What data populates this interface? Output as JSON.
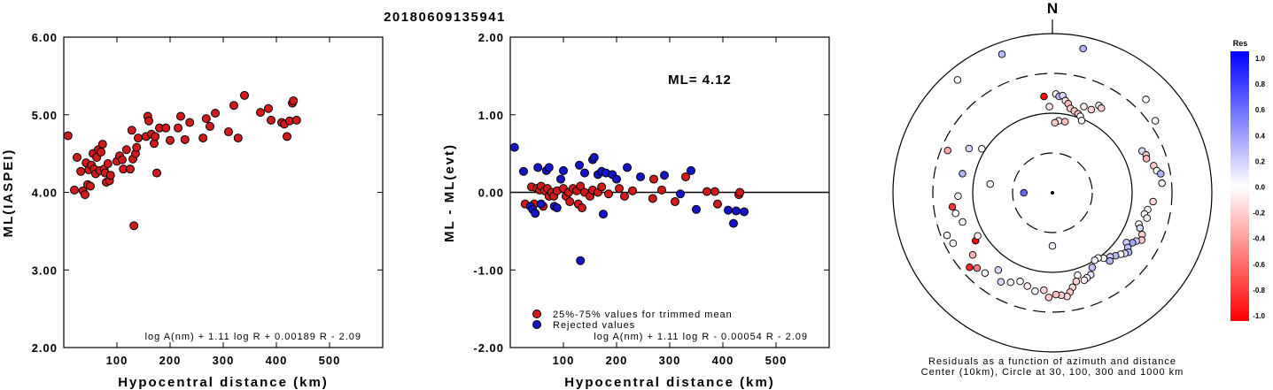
{
  "event_id": "20180609135941",
  "colors": {
    "accepted": "#d11a1a",
    "rejected": "#1414c8"
  },
  "chart_data": [
    {
      "type": "scatter",
      "id": "left",
      "xlabel": "Hypocentral distance (km)",
      "ylabel": "ML(IASPEI)",
      "xlim": [
        0,
        600
      ],
      "ylim": [
        2.0,
        6.0
      ],
      "x_ticks": [
        "100",
        "200",
        "300",
        "400",
        "500"
      ],
      "y_ticks": [
        "2.00",
        "3.00",
        "4.00",
        "5.00",
        "6.00"
      ],
      "formula": "log A(nm) + 1.11 log R + 0.00189 R - 2.09",
      "series": [
        {
          "points": [
            [
              8,
              4.73
            ],
            [
              20,
              4.03
            ],
            [
              25,
              4.45
            ],
            [
              32,
              4.27
            ],
            [
              36,
              4.02
            ],
            [
              40,
              3.97
            ],
            [
              42,
              4.38
            ],
            [
              45,
              4.1
            ],
            [
              47,
              4.29
            ],
            [
              50,
              4.08
            ],
            [
              52,
              4.35
            ],
            [
              55,
              4.5
            ],
            [
              57,
              4.3
            ],
            [
              60,
              4.24
            ],
            [
              62,
              4.45
            ],
            [
              65,
              4.55
            ],
            [
              68,
              4.28
            ],
            [
              70,
              4.52
            ],
            [
              73,
              4.62
            ],
            [
              76,
              4.3
            ],
            [
              78,
              4.25
            ],
            [
              80,
              4.13
            ],
            [
              83,
              4.37
            ],
            [
              86,
              4.15
            ],
            [
              88,
              4.22
            ],
            [
              100,
              4.4
            ],
            [
              105,
              4.47
            ],
            [
              110,
              4.42
            ],
            [
              112,
              4.3
            ],
            [
              118,
              4.55
            ],
            [
              125,
              4.3
            ],
            [
              128,
              4.8
            ],
            [
              130,
              4.43
            ],
            [
              132,
              3.57
            ],
            [
              135,
              4.5
            ],
            [
              137,
              4.58
            ],
            [
              140,
              4.7
            ],
            [
              155,
              4.72
            ],
            [
              158,
              4.98
            ],
            [
              160,
              4.92
            ],
            [
              165,
              4.75
            ],
            [
              170,
              4.63
            ],
            [
              172,
              4.72
            ],
            [
              175,
              4.25
            ],
            [
              180,
              4.83
            ],
            [
              192,
              4.83
            ],
            [
              200,
              4.67
            ],
            [
              215,
              4.83
            ],
            [
              220,
              4.98
            ],
            [
              228,
              4.68
            ],
            [
              237,
              4.9
            ],
            [
              262,
              4.7
            ],
            [
              268,
              4.95
            ],
            [
              275,
              4.85
            ],
            [
              285,
              5.02
            ],
            [
              310,
              4.78
            ],
            [
              320,
              5.12
            ],
            [
              328,
              4.7
            ],
            [
              340,
              5.25
            ],
            [
              370,
              5.03
            ],
            [
              385,
              5.08
            ],
            [
              390,
              4.93
            ],
            [
              410,
              4.9
            ],
            [
              415,
              4.88
            ],
            [
              420,
              4.72
            ],
            [
              425,
              4.92
            ],
            [
              430,
              5.15
            ],
            [
              432,
              5.18
            ],
            [
              438,
              4.93
            ]
          ]
        }
      ]
    },
    {
      "type": "scatter",
      "id": "middle",
      "xlabel": "Hypocentral distance (km)",
      "ylabel": "ML - ML(evt)",
      "xlim": [
        0,
        600
      ],
      "ylim": [
        -2.0,
        2.0
      ],
      "x_ticks": [
        "100",
        "200",
        "300",
        "400",
        "500"
      ],
      "y_ticks": [
        "-2.00",
        "-1.00",
        "0.00",
        "1.00",
        "2.00"
      ],
      "annotation": "ML= 4.12",
      "legend": [
        "25%-75% values for trimmed mean",
        "Rejected values"
      ],
      "formula": "log A(nm) + 1.11 log R - 0.00054 R - 2.09",
      "series": [
        {
          "name": "25%-75% values for trimmed mean",
          "points": [
            [
              28,
              -0.15
            ],
            [
              40,
              0.07
            ],
            [
              45,
              -0.15
            ],
            [
              50,
              0.05
            ],
            [
              55,
              0.03
            ],
            [
              58,
              0.08
            ],
            [
              62,
              -0.18
            ],
            [
              65,
              0.02
            ],
            [
              70,
              0.05
            ],
            [
              73,
              -0.05
            ],
            [
              78,
              0.0
            ],
            [
              82,
              -0.05
            ],
            [
              88,
              0.02
            ],
            [
              100,
              0.05
            ],
            [
              105,
              -0.05
            ],
            [
              110,
              0.0
            ],
            [
              112,
              -0.12
            ],
            [
              118,
              0.05
            ],
            [
              125,
              0.02
            ],
            [
              128,
              -0.15
            ],
            [
              132,
              0.08
            ],
            [
              135,
              -0.2
            ],
            [
              140,
              0.0
            ],
            [
              150,
              -0.05
            ],
            [
              155,
              0.03
            ],
            [
              165,
              0.0
            ],
            [
              172,
              0.07
            ],
            [
              185,
              -0.02
            ],
            [
              205,
              0.05
            ],
            [
              215,
              -0.05
            ],
            [
              230,
              0.02
            ],
            [
              268,
              -0.08
            ],
            [
              270,
              0.17
            ],
            [
              285,
              0.03
            ],
            [
              310,
              -0.12
            ],
            [
              330,
              0.2
            ],
            [
              370,
              0.01
            ],
            [
              385,
              0.01
            ],
            [
              390,
              -0.15
            ],
            [
              430,
              -0.03
            ],
            [
              432,
              0.0
            ]
          ]
        },
        {
          "name": "Rejected values",
          "points": [
            [
              8,
              0.58
            ],
            [
              25,
              0.27
            ],
            [
              38,
              -0.18
            ],
            [
              42,
              -0.22
            ],
            [
              47,
              -0.27
            ],
            [
              52,
              0.32
            ],
            [
              58,
              -0.15
            ],
            [
              68,
              0.28
            ],
            [
              73,
              0.32
            ],
            [
              83,
              -0.18
            ],
            [
              88,
              -0.2
            ],
            [
              95,
              0.17
            ],
            [
              100,
              0.28
            ],
            [
              130,
              0.35
            ],
            [
              132,
              -0.88
            ],
            [
              140,
              0.25
            ],
            [
              155,
              0.42
            ],
            [
              158,
              0.45
            ],
            [
              165,
              0.23
            ],
            [
              172,
              0.27
            ],
            [
              175,
              -0.28
            ],
            [
              180,
              0.25
            ],
            [
              192,
              0.23
            ],
            [
              200,
              0.17
            ],
            [
              220,
              0.32
            ],
            [
              245,
              0.2
            ],
            [
              290,
              0.22
            ],
            [
              320,
              -0.02
            ],
            [
              340,
              0.28
            ],
            [
              350,
              -0.22
            ],
            [
              410,
              -0.23
            ],
            [
              420,
              -0.4
            ],
            [
              425,
              -0.24
            ],
            [
              440,
              -0.25
            ]
          ]
        }
      ]
    },
    {
      "type": "scatter",
      "id": "polar",
      "north_label": "N",
      "caption_line1": "Residuals as a function of azimuth and distance",
      "caption_line2": "Center (10km), Circle at 30, 100, 300 and 1000 km",
      "colorbar": {
        "title": "Res",
        "labels": [
          "1.0",
          "0.8",
          "0.6",
          "0.4",
          "0.2",
          "0.0",
          "-0.2",
          "-0.4",
          "-0.6",
          "-0.8",
          "-1.0"
        ],
        "max_color": "#0000ff",
        "zero_color": "#ffffff",
        "min_color": "#ff0000"
      },
      "series": [
        {
          "name": "stations",
          "columns": [
            "azimuth_deg",
            "distance_km",
            "residual"
          ],
          "points": [
            [
              2,
              170,
              -0.05
            ],
            [
              4,
              160,
              0.25
            ],
            [
              6,
              165,
              0.15
            ],
            [
              8,
              145,
              -0.12
            ],
            [
              10,
              135,
              -0.28
            ],
            [
              12,
              120,
              -0.2
            ],
            [
              15,
              115,
              -0.22
            ],
            [
              18,
              110,
              -0.2
            ],
            [
              20,
              105,
              -0.02
            ],
            [
              22,
              95,
              -0.05
            ],
            [
              25,
              140,
              -0.15
            ],
            [
              28,
              170,
              0.08
            ],
            [
              30,
              165,
              -0.18
            ],
            [
              355,
              160,
              -0.95
            ],
            [
              358,
              120,
              -0.1
            ],
            [
              5,
              80,
              -0.1
            ],
            [
              2,
              75,
              -0.2
            ],
            [
              10,
              80,
              -0.25
            ],
            [
              45,
              440,
              0.0
            ],
            [
              20,
              140,
              -0.05
            ],
            [
              55,
              360,
              0.0
            ],
            [
              340,
              700,
              0.28
            ],
            [
              12,
              700,
              0.3
            ],
            [
              320,
              700,
              0.0
            ],
            [
              65,
              170,
              0.15
            ],
            [
              68,
              180,
              -0.2
            ],
            [
              70,
              175,
              -0.3
            ],
            [
              75,
              200,
              -0.2
            ],
            [
              78,
              210,
              0.0
            ],
            [
              80,
              230,
              0.3
            ],
            [
              85,
              230,
              -0.05
            ],
            [
              95,
              180,
              -0.15
            ],
            [
              100,
              160,
              -0.05
            ],
            [
              103,
              150,
              0.0
            ],
            [
              105,
              165,
              -0.05
            ],
            [
              110,
              140,
              0.0
            ],
            [
              112,
              150,
              0.15
            ],
            [
              115,
              170,
              -0.2
            ],
            [
              118,
              180,
              -0.2
            ],
            [
              120,
              160,
              0.2
            ],
            [
              122,
              150,
              0.35
            ],
            [
              124,
              130,
              0.2
            ],
            [
              126,
              145,
              0.25
            ],
            [
              128,
              160,
              0.3
            ],
            [
              130,
              150,
              0.15
            ],
            [
              132,
              140,
              0.0
            ],
            [
              135,
              130,
              0.28
            ],
            [
              138,
              120,
              0.2
            ],
            [
              140,
              130,
              0.3
            ],
            [
              142,
              110,
              -0.05
            ],
            [
              145,
              100,
              0.0
            ],
            [
              148,
              100,
              0.05
            ],
            [
              152,
              115,
              0.25
            ],
            [
              155,
              135,
              0.1
            ],
            [
              158,
              140,
              0.0
            ],
            [
              160,
              145,
              -0.05
            ],
            [
              163,
              120,
              -0.05
            ],
            [
              165,
              140,
              -0.18
            ],
            [
              168,
              160,
              -0.15
            ],
            [
              170,
              180,
              -0.2
            ],
            [
              172,
              200,
              -0.15
            ],
            [
              175,
              190,
              -0.2
            ],
            [
              178,
              185,
              -0.25
            ],
            [
              182,
              200,
              -0.2
            ],
            [
              185,
              165,
              -0.15
            ],
            [
              190,
              175,
              0.05
            ],
            [
              195,
              160,
              -0.05
            ],
            [
              200,
              150,
              0.0
            ],
            [
              205,
              170,
              0.05
            ],
            [
              210,
              190,
              0.15
            ],
            [
              215,
              150,
              0.15
            ],
            [
              220,
              200,
              0.0
            ],
            [
              225,
              210,
              -0.5
            ],
            [
              228,
              240,
              -0.85
            ],
            [
              232,
              180,
              -0.3
            ],
            [
              238,
              135,
              -1.0
            ],
            [
              243,
              240,
              0.0
            ],
            [
              248,
              255,
              0.0
            ],
            [
              252,
              150,
              -0.05
            ],
            [
              258,
              170,
              0.0
            ],
            [
              262,
              180,
              -0.8
            ],
            [
              268,
              150,
              0.05
            ],
            [
              278,
              60,
              0.05
            ],
            [
              282,
              140,
              0.3
            ],
            [
              292,
              250,
              -0.35
            ],
            [
              298,
              150,
              0.15
            ],
            [
              302,
              110,
              0.0
            ],
            [
              270,
              22,
              0.6
            ],
            [
              180,
              45,
              0.05
            ],
            [
              240,
              120,
              -0.05
            ]
          ]
        }
      ]
    }
  ]
}
